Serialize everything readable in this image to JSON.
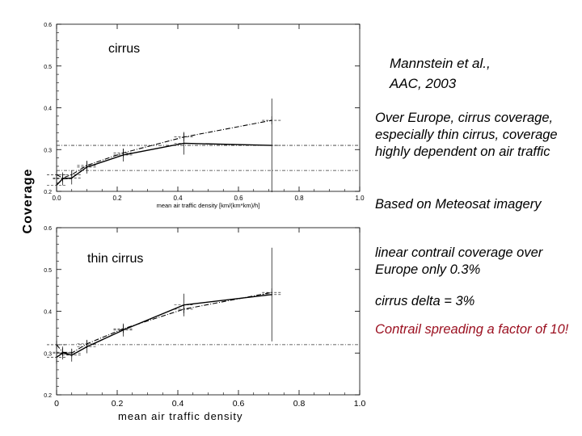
{
  "ylabel": "Coverage",
  "citation": [
    "Mannstein et al.,",
    "AAC, 2003"
  ],
  "notes": [
    {
      "text": "Over Europe, cirrus coverage, especially thin cirrus, coverage highly dependent on air traffic",
      "color": "#000000"
    },
    {
      "text": "Based on Meteosat imagery",
      "color": "#000000"
    },
    {
      "text": "linear contrail coverage over Europe only 0.3%",
      "color": "#000000"
    },
    {
      "text": "cirrus delta = 3%",
      "color": "#000000"
    },
    {
      "text": "Contrail spreading a factor of 10!",
      "color": "#9b1020"
    }
  ],
  "chart_data": [
    {
      "type": "line",
      "panel_label": "cirrus",
      "xlabel": "mean air traffic density [km/(km*km)/h]",
      "xlim": [
        0,
        1.0
      ],
      "ylim": [
        0.2,
        0.6
      ],
      "x_ticks": [
        "0.0",
        "0.2",
        "0.4",
        "0.6",
        "0.8",
        "1.0"
      ],
      "y_ticks": [
        "0.2",
        "0.3",
        "0.4",
        "0.5",
        "0.6"
      ],
      "reference_line": 0.31,
      "secondary_reference_line": 0.25,
      "series": [
        {
          "style": "solid",
          "x": [
            0.0,
            0.02,
            0.05,
            0.1,
            0.22,
            0.42,
            0.71
          ],
          "y": [
            0.215,
            0.23,
            0.232,
            0.258,
            0.287,
            0.315,
            0.31
          ]
        },
        {
          "style": "dashdot",
          "x": [
            0.0,
            0.02,
            0.05,
            0.1,
            0.22,
            0.42,
            0.71
          ],
          "y": [
            0.24,
            0.232,
            0.24,
            0.262,
            0.292,
            0.33,
            0.37
          ]
        }
      ]
    },
    {
      "type": "line",
      "panel_label": "thin cirrus",
      "xlabel": "mean air traffic density",
      "xlim": [
        0,
        1.0
      ],
      "ylim": [
        0.2,
        0.6
      ],
      "x_ticks": [
        "0",
        "0.2",
        "0.4",
        "0.6",
        "0.8",
        "1.0"
      ],
      "y_ticks": [
        "0.2",
        "0.3",
        "0.4",
        "0.5",
        "0.6"
      ],
      "reference_line": 0.32,
      "series": [
        {
          "style": "solid",
          "x": [
            0.0,
            0.02,
            0.05,
            0.1,
            0.22,
            0.42,
            0.71
          ],
          "y": [
            0.29,
            0.3,
            0.295,
            0.315,
            0.355,
            0.415,
            0.44
          ]
        },
        {
          "style": "dashdot",
          "x": [
            0.0,
            0.02,
            0.05,
            0.1,
            0.22,
            0.42,
            0.71
          ],
          "y": [
            0.32,
            0.302,
            0.3,
            0.322,
            0.358,
            0.405,
            0.445
          ]
        }
      ]
    }
  ]
}
